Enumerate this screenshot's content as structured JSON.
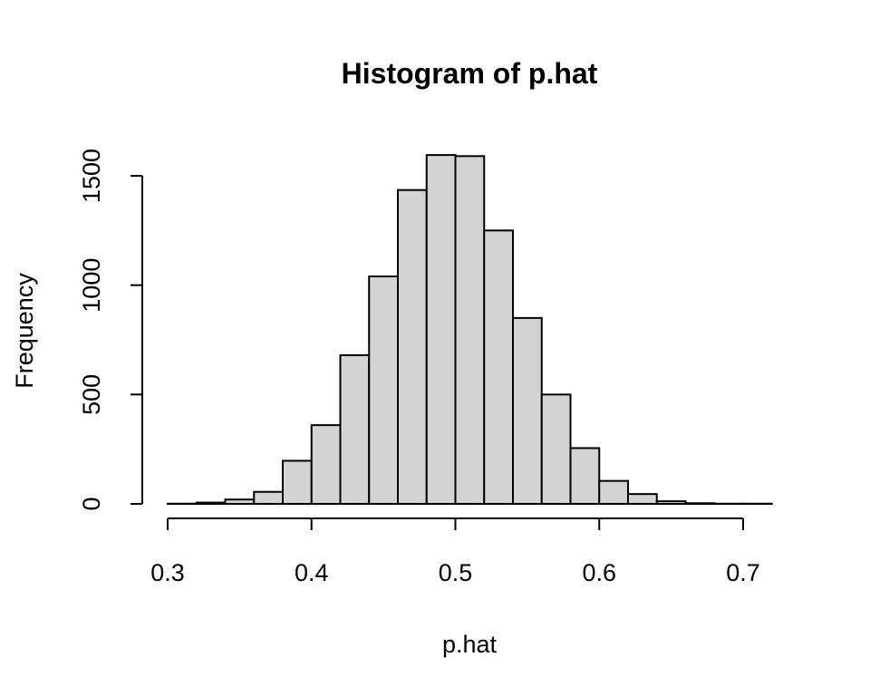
{
  "chart_data": {
    "type": "bar",
    "title": "Histogram of p.hat",
    "xlabel": "p.hat",
    "ylabel": "Frequency",
    "xlim": [
      0.3,
      0.7
    ],
    "ylim": [
      0,
      1600
    ],
    "x_ticks": [
      "0.3",
      "0.4",
      "0.5",
      "0.6",
      "0.7"
    ],
    "y_ticks": [
      "0",
      "500",
      "1000",
      "1500"
    ],
    "bin_width": 0.02,
    "bins": [
      {
        "start": 0.3,
        "count": 1
      },
      {
        "start": 0.32,
        "count": 6
      },
      {
        "start": 0.34,
        "count": 20
      },
      {
        "start": 0.36,
        "count": 55
      },
      {
        "start": 0.38,
        "count": 197
      },
      {
        "start": 0.4,
        "count": 360
      },
      {
        "start": 0.42,
        "count": 680
      },
      {
        "start": 0.44,
        "count": 1040
      },
      {
        "start": 0.46,
        "count": 1435
      },
      {
        "start": 0.48,
        "count": 1595
      },
      {
        "start": 0.5,
        "count": 1590
      },
      {
        "start": 0.52,
        "count": 1250
      },
      {
        "start": 0.54,
        "count": 850
      },
      {
        "start": 0.56,
        "count": 500
      },
      {
        "start": 0.58,
        "count": 255
      },
      {
        "start": 0.6,
        "count": 105
      },
      {
        "start": 0.62,
        "count": 45
      },
      {
        "start": 0.64,
        "count": 12
      },
      {
        "start": 0.66,
        "count": 3
      },
      {
        "start": 0.68,
        "count": 1
      },
      {
        "start": 0.7,
        "count": 1
      }
    ],
    "colors": {
      "bar_fill": "#d3d3d3",
      "bar_stroke": "#000000"
    },
    "grid": false,
    "legend": "none"
  }
}
